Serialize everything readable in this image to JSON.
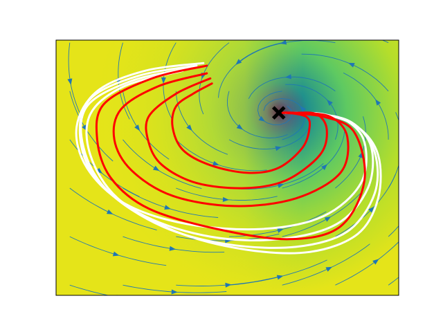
{
  "chart_data": {
    "type": "streamplot",
    "title": "",
    "xlabel": "",
    "ylabel": "",
    "xlim": [
      0,
      1
    ],
    "ylim": [
      0,
      1
    ],
    "ticks": false,
    "grid": false,
    "colormap": "viridis",
    "background_colors": [
      "#440154",
      "#3b528b",
      "#21918c",
      "#5ec962",
      "#b5de2b",
      "#e5e419"
    ],
    "streamline_color": "#1f77b4",
    "attractor": {
      "x": 0.65,
      "y": 0.715,
      "marker": "cross",
      "color": "#000000"
    },
    "series": [
      {
        "color": "#ff0000",
        "curves": [
          [
            [
              0.455,
              0.83
            ],
            [
              0.4,
              0.79
            ],
            [
              0.35,
              0.74
            ],
            [
              0.34,
              0.66
            ],
            [
              0.37,
              0.57
            ],
            [
              0.45,
              0.51
            ],
            [
              0.56,
              0.48
            ],
            [
              0.65,
              0.5
            ],
            [
              0.72,
              0.58
            ],
            [
              0.74,
              0.66
            ],
            [
              0.73,
              0.7
            ],
            [
              0.68,
              0.715
            ],
            [
              0.66,
              0.715
            ]
          ],
          [
            [
              0.45,
              0.85
            ],
            [
              0.35,
              0.79
            ],
            [
              0.27,
              0.7
            ],
            [
              0.27,
              0.6
            ],
            [
              0.31,
              0.51
            ],
            [
              0.41,
              0.44
            ],
            [
              0.55,
              0.42
            ],
            [
              0.67,
              0.45
            ],
            [
              0.77,
              0.55
            ],
            [
              0.79,
              0.65
            ],
            [
              0.76,
              0.71
            ],
            [
              0.69,
              0.715
            ],
            [
              0.66,
              0.715
            ]
          ],
          [
            [
              0.44,
              0.87
            ],
            [
              0.3,
              0.82
            ],
            [
              0.19,
              0.73
            ],
            [
              0.17,
              0.61
            ],
            [
              0.22,
              0.49
            ],
            [
              0.34,
              0.39
            ],
            [
              0.52,
              0.35
            ],
            [
              0.7,
              0.38
            ],
            [
              0.83,
              0.48
            ],
            [
              0.85,
              0.62
            ],
            [
              0.8,
              0.7
            ],
            [
              0.7,
              0.715
            ],
            [
              0.66,
              0.715
            ]
          ],
          [
            [
              0.44,
              0.9
            ],
            [
              0.28,
              0.85
            ],
            [
              0.14,
              0.75
            ],
            [
              0.12,
              0.61
            ],
            [
              0.16,
              0.46
            ],
            [
              0.27,
              0.34
            ],
            [
              0.47,
              0.26
            ],
            [
              0.68,
              0.22
            ],
            [
              0.83,
              0.27
            ],
            [
              0.9,
              0.45
            ],
            [
              0.87,
              0.64
            ],
            [
              0.78,
              0.7
            ],
            [
              0.67,
              0.715
            ]
          ]
        ]
      },
      {
        "color": "#ffffff",
        "curves": [
          [
            [
              0.43,
              0.91
            ],
            [
              0.26,
              0.88
            ],
            [
              0.12,
              0.8
            ],
            [
              0.06,
              0.66
            ],
            [
              0.09,
              0.5
            ],
            [
              0.2,
              0.36
            ],
            [
              0.38,
              0.28
            ],
            [
              0.6,
              0.26
            ],
            [
              0.78,
              0.31
            ],
            [
              0.89,
              0.44
            ],
            [
              0.9,
              0.6
            ],
            [
              0.84,
              0.69
            ],
            [
              0.74,
              0.71
            ],
            [
              0.67,
              0.715
            ]
          ],
          [
            [
              0.41,
              0.9
            ],
            [
              0.24,
              0.86
            ],
            [
              0.1,
              0.77
            ],
            [
              0.07,
              0.62
            ],
            [
              0.12,
              0.45
            ],
            [
              0.26,
              0.31
            ],
            [
              0.45,
              0.23
            ],
            [
              0.65,
              0.22
            ],
            [
              0.82,
              0.28
            ],
            [
              0.91,
              0.42
            ],
            [
              0.92,
              0.58
            ],
            [
              0.86,
              0.68
            ],
            [
              0.76,
              0.71
            ],
            [
              0.67,
              0.715
            ]
          ],
          [
            [
              0.39,
              0.89
            ],
            [
              0.22,
              0.84
            ],
            [
              0.09,
              0.74
            ],
            [
              0.08,
              0.58
            ],
            [
              0.15,
              0.41
            ],
            [
              0.31,
              0.27
            ],
            [
              0.5,
              0.2
            ],
            [
              0.7,
              0.19
            ],
            [
              0.85,
              0.25
            ],
            [
              0.93,
              0.4
            ],
            [
              0.93,
              0.56
            ],
            [
              0.87,
              0.67
            ],
            [
              0.77,
              0.71
            ],
            [
              0.67,
              0.715
            ]
          ],
          [
            [
              0.37,
              0.88
            ],
            [
              0.2,
              0.82
            ],
            [
              0.1,
              0.71
            ],
            [
              0.1,
              0.55
            ],
            [
              0.18,
              0.38
            ],
            [
              0.35,
              0.25
            ],
            [
              0.55,
              0.18
            ],
            [
              0.74,
              0.17
            ],
            [
              0.88,
              0.24
            ],
            [
              0.94,
              0.38
            ],
            [
              0.94,
              0.55
            ],
            [
              0.88,
              0.66
            ],
            [
              0.78,
              0.71
            ],
            [
              0.67,
              0.715
            ]
          ]
        ]
      }
    ]
  }
}
